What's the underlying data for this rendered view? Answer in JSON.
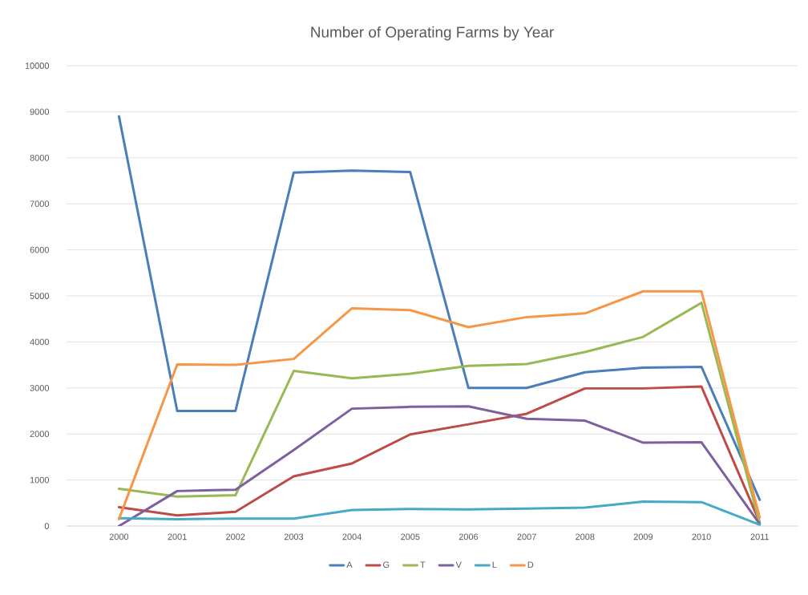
{
  "chart_data": {
    "type": "line",
    "title": "Number of Operating Farms by Year",
    "categories": [
      "2000",
      "2001",
      "2002",
      "2003",
      "2004",
      "2005",
      "2006",
      "2007",
      "2008",
      "2009",
      "2010",
      "2011"
    ],
    "series": [
      {
        "name": "A",
        "color": "#4a7ebb",
        "values": [
          8900,
          2500,
          2500,
          7680,
          7720,
          7690,
          3000,
          3000,
          3340,
          3440,
          3460,
          570
        ]
      },
      {
        "name": "G",
        "color": "#be4b48",
        "values": [
          410,
          230,
          310,
          1080,
          1360,
          1990,
          2210,
          2440,
          2990,
          2990,
          3030,
          80
        ]
      },
      {
        "name": "T",
        "color": "#98b954",
        "values": [
          810,
          640,
          670,
          3370,
          3210,
          3310,
          3480,
          3520,
          3780,
          4110,
          4850,
          50
        ]
      },
      {
        "name": "V",
        "color": "#7d60a0",
        "values": [
          0,
          760,
          790,
          1650,
          2550,
          2590,
          2600,
          2330,
          2290,
          1810,
          1820,
          40
        ]
      },
      {
        "name": "L",
        "color": "#46aac5",
        "values": [
          170,
          150,
          160,
          160,
          350,
          370,
          360,
          380,
          400,
          530,
          520,
          30
        ]
      },
      {
        "name": "D",
        "color": "#f79646",
        "values": [
          150,
          3510,
          3500,
          3630,
          4730,
          4690,
          4320,
          4540,
          4620,
          5100,
          5100,
          180
        ]
      }
    ],
    "ylim": [
      0,
      10000
    ],
    "yticks": [
      0,
      1000,
      2000,
      3000,
      4000,
      5000,
      6000,
      7000,
      8000,
      9000,
      10000
    ],
    "grid": "y",
    "legend": "bottom",
    "marker": "none",
    "line_style": "solid"
  }
}
